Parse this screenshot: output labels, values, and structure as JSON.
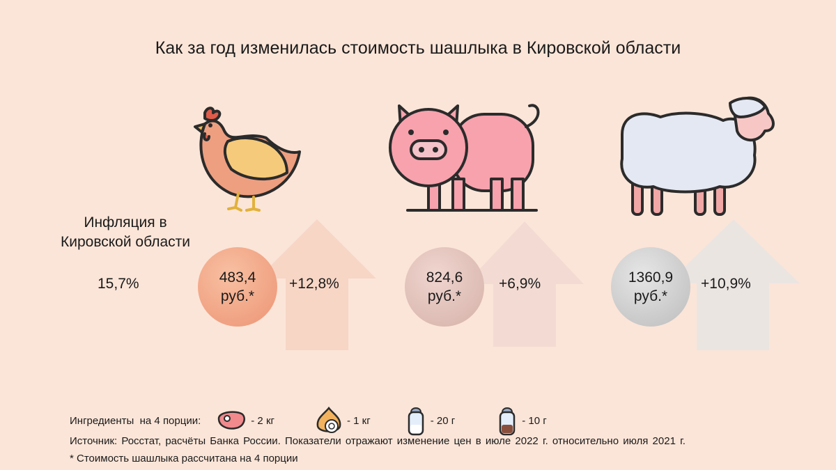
{
  "title": "Как за год изменилась стоимость шашлыка в Кировской области",
  "inflation": {
    "label_line1": "Инфляция в",
    "label_line2": "Кировской области",
    "value": "15,7%"
  },
  "items": [
    {
      "animal": "chicken-icon",
      "price_line1": "483,4",
      "price_line2": "руб.*",
      "change": "+12,8%",
      "color": "#ec9474"
    },
    {
      "animal": "pig-icon",
      "price_line1": "824,6",
      "price_line2": "руб.*",
      "change": "+6,9%",
      "color": "#d4b1a8"
    },
    {
      "animal": "sheep-icon",
      "price_line1": "1360,9",
      "price_line2": "руб.*",
      "change": "+10,9%",
      "color": "#bcbcbc"
    }
  ],
  "ingredients": {
    "label": "Ингредиенты  на 4 порции:",
    "list": [
      {
        "icon": "meat-icon",
        "amount": "- 2 кг"
      },
      {
        "icon": "onion-icon",
        "amount": "- 1 кг"
      },
      {
        "icon": "salt-shaker-icon",
        "amount": "- 20 г"
      },
      {
        "icon": "pepper-shaker-icon",
        "amount": "- 10 г"
      }
    ]
  },
  "source": "Источник: Росстат, расчёты Банка России. Показатели отражают изменение  цен в июле 2022 г. относительно  июля 2021 г.",
  "footnote": "* Стоимость  шашлыка рассчитана на 4 порции"
}
